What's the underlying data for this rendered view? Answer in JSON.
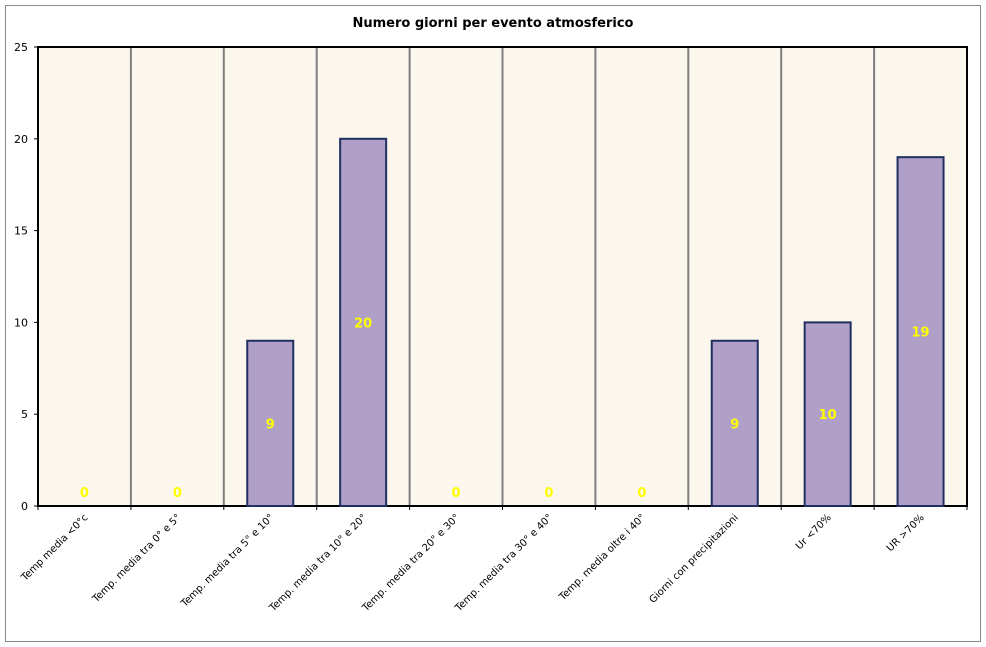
{
  "chart_data": {
    "type": "bar",
    "title": "Numero giorni per evento atmosferico",
    "categories": [
      "Temp media <0°c",
      "Temp. media tra 0° e 5°",
      "Temp. media tra 5° e 10°",
      "Temp. media tra 10° e 20°",
      "Temp. media tra 20° e 30°",
      "Temp. media tra 30° e 40°",
      "Temp. media oltre i 40°",
      "Giorni con precipitazioni",
      "Ur <70%",
      "UR >70%"
    ],
    "values": [
      0,
      0,
      9,
      20,
      0,
      0,
      0,
      9,
      10,
      19
    ],
    "ylim": [
      0,
      25
    ],
    "yticks": [
      0,
      5,
      10,
      15,
      20,
      25
    ],
    "xlabel": "",
    "ylabel": "",
    "grid": "vertical",
    "legend": "none",
    "data_labels": true,
    "colors": {
      "bar_fill": "#b0a0c8",
      "bar_stroke": "#1f2f5f",
      "plot_bg": "#fcf7ec",
      "grid": "#7f7f7f",
      "data_label": "#ffff00"
    }
  }
}
